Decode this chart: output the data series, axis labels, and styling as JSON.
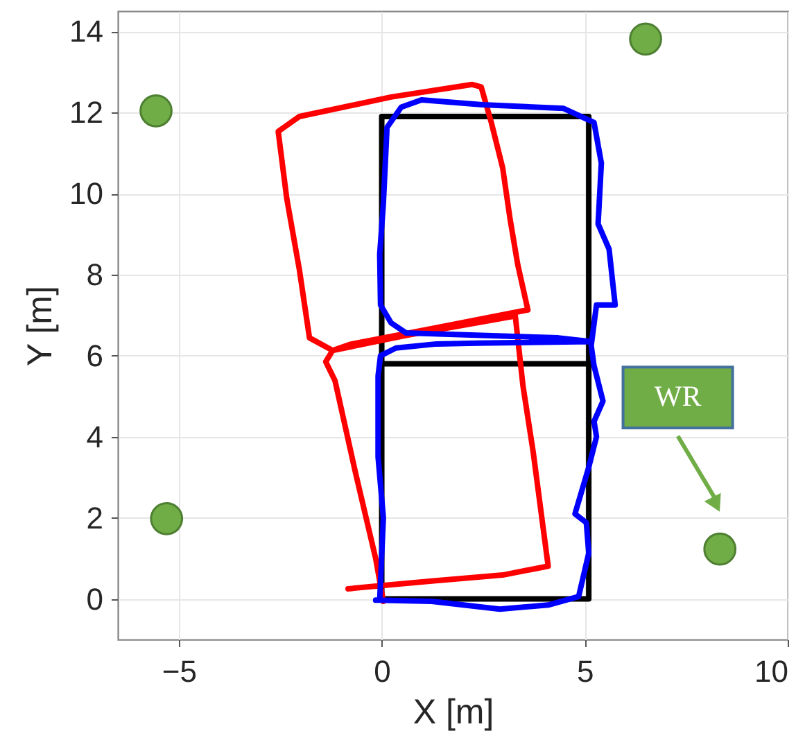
{
  "chart_data": {
    "type": "line",
    "xlabel": "X [m]",
    "ylabel": "Y [m]",
    "xlim": [
      -6.5,
      10
    ],
    "ylim": [
      -1,
      14.5
    ],
    "xticks": [
      -5,
      0,
      5,
      10
    ],
    "yticks": [
      0,
      2,
      4,
      6,
      8,
      10,
      12,
      14
    ],
    "grid": true,
    "annotations": [
      "WR"
    ],
    "series": [
      {
        "type": "line",
        "color": "#000000",
        "x": [
          0,
          5.1,
          5.1,
          0,
          0,
          5.1,
          5.1
        ],
        "values": [
          5.8,
          5.8,
          11.9,
          11.9,
          0,
          0,
          5.8
        ]
      },
      {
        "type": "line",
        "color": "#ff0000",
        "x": [
          0.04,
          -0.15,
          -0.65,
          -1.15,
          -1.38,
          -1.21,
          -0.78,
          1.35,
          3.6,
          3.35,
          3.16,
          2.98,
          2.7,
          2.45,
          2.23,
          0.23,
          -2.03,
          -2.55,
          -2.34,
          -2.03,
          -1.78,
          -1.21,
          0.6,
          3.29,
          3.48,
          3.73,
          4.1,
          2.98,
          1.23,
          0.1,
          -0.83
        ],
        "values": [
          -0.06,
          1.0,
          3.13,
          5.38,
          5.85,
          6.13,
          6.28,
          6.69,
          7.13,
          8.25,
          9.38,
          10.63,
          11.75,
          12.63,
          12.69,
          12.38,
          11.9,
          11.53,
          9.88,
          8.13,
          6.44,
          6.13,
          6.5,
          6.98,
          5.25,
          3.63,
          0.81,
          0.59,
          0.44,
          0.34,
          0.25
        ]
      },
      {
        "type": "line",
        "color": "#0000ff",
        "x": [
          -0.15,
          1.23,
          2.91,
          4.1,
          4.85,
          5.1,
          5.04,
          4.76,
          5.1,
          5.29,
          5.23,
          5.45,
          5.23,
          5.16,
          5.29,
          5.75,
          5.6,
          5.33,
          5.41,
          5.23,
          4.48,
          2.48,
          0.98,
          0.48,
          0.13,
          0.04,
          -0.05,
          -0.03,
          0.23,
          0.6,
          4.35,
          5.16,
          2.35,
          1.35,
          0.35,
          -0.03,
          -0.09,
          -0.09,
          0.04,
          -0.05
        ],
        "values": [
          -0.03,
          -0.06,
          -0.25,
          -0.15,
          0.06,
          1.13,
          1.88,
          2.1,
          3.25,
          4.0,
          4.38,
          4.88,
          5.75,
          6.25,
          7.25,
          7.25,
          8.63,
          9.25,
          10.75,
          11.75,
          12.1,
          12.19,
          12.31,
          12.13,
          11.63,
          9.75,
          8.5,
          7.25,
          6.81,
          6.56,
          6.44,
          6.35,
          6.31,
          6.29,
          6.19,
          6.0,
          5.5,
          3.5,
          2.0,
          -0.03
        ]
      },
      {
        "type": "scatter",
        "color": "#70ad47",
        "marker": "circle",
        "x": [
          -5.56,
          6.5,
          -5.3,
          8.33
        ],
        "values": [
          12.04,
          13.81,
          1.98,
          1.23
        ]
      }
    ]
  }
}
